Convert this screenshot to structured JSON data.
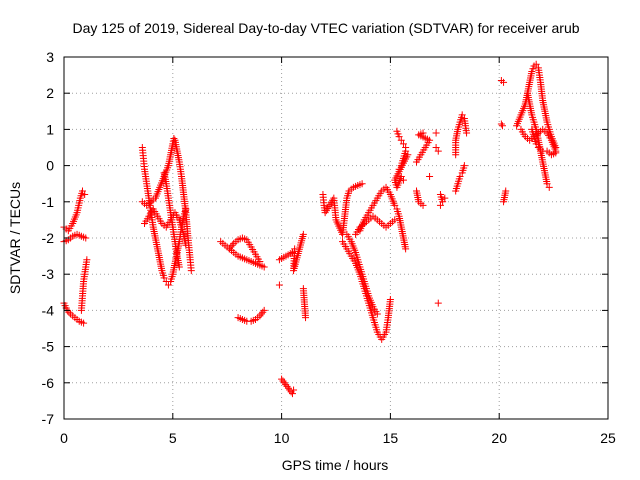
{
  "chart_data": {
    "type": "scatter",
    "title": "Day 125 of 2019, Sidereal Day-to-day VTEC variation (SDTVAR) for receiver arub",
    "xlabel": "GPS time / hours",
    "ylabel": "SDTVAR / TECUs",
    "xlim": [
      0,
      25
    ],
    "ylim": [
      -7,
      3
    ],
    "xticks": [
      0,
      5,
      10,
      15,
      20,
      25
    ],
    "yticks": [
      -7,
      -6,
      -5,
      -4,
      -3,
      -2,
      -1,
      0,
      1,
      2,
      3
    ],
    "grid": true,
    "grid_style": "dotted",
    "marker": "+",
    "marker_color": "#ff0000",
    "series": [
      {
        "name": "SDTVAR",
        "tracks": [
          [
            [
              0.0,
              -1.7
            ],
            [
              0.2,
              -1.8
            ],
            [
              0.4,
              -1.6
            ],
            [
              0.6,
              -1.3
            ],
            [
              0.75,
              -0.9
            ],
            [
              0.85,
              -0.7
            ],
            [
              0.95,
              -0.8
            ]
          ],
          [
            [
              0.0,
              -2.1
            ],
            [
              0.2,
              -2.05
            ],
            [
              0.4,
              -1.95
            ],
            [
              0.6,
              -1.9
            ],
            [
              0.8,
              -1.95
            ],
            [
              1.0,
              -2.0
            ]
          ],
          [
            [
              0.0,
              -3.8
            ],
            [
              0.15,
              -4.0
            ],
            [
              0.3,
              -4.1
            ],
            [
              0.5,
              -4.2
            ],
            [
              0.7,
              -4.3
            ],
            [
              0.9,
              -4.35
            ]
          ],
          [
            [
              0.8,
              -4.0
            ],
            [
              0.85,
              -3.6
            ],
            [
              0.9,
              -3.2
            ],
            [
              1.0,
              -2.8
            ],
            [
              1.05,
              -2.6
            ]
          ],
          [
            [
              3.6,
              0.5
            ],
            [
              3.65,
              0.2
            ],
            [
              3.7,
              -0.1
            ],
            [
              3.8,
              -0.5
            ],
            [
              3.9,
              -0.9
            ],
            [
              4.0,
              -1.3
            ],
            [
              4.1,
              -1.7
            ],
            [
              4.2,
              -2.0
            ],
            [
              4.3,
              -2.3
            ],
            [
              4.4,
              -2.6
            ],
            [
              4.5,
              -2.9
            ],
            [
              4.6,
              -3.1
            ],
            [
              4.7,
              -3.2
            ],
            [
              4.8,
              -3.3
            ],
            [
              4.9,
              -3.2
            ],
            [
              5.0,
              -3.0
            ],
            [
              5.1,
              -2.7
            ],
            [
              5.2,
              -2.4
            ],
            [
              5.3,
              -2.1
            ],
            [
              5.4,
              -1.7
            ],
            [
              5.5,
              -1.4
            ],
            [
              5.6,
              -1.2
            ]
          ],
          [
            [
              3.6,
              -1.0
            ],
            [
              3.8,
              -1.1
            ],
            [
              4.0,
              -1.0
            ],
            [
              4.2,
              -0.9
            ],
            [
              4.4,
              -0.6
            ],
            [
              4.6,
              -0.3
            ],
            [
              4.8,
              0.0
            ],
            [
              4.9,
              0.3
            ],
            [
              5.0,
              0.6
            ],
            [
              5.05,
              0.75
            ],
            [
              5.1,
              0.7
            ],
            [
              5.2,
              0.4
            ],
            [
              5.3,
              0.1
            ],
            [
              5.4,
              -0.3
            ],
            [
              5.5,
              -0.8
            ],
            [
              5.6,
              -1.3
            ],
            [
              5.7,
              -2.0
            ],
            [
              5.8,
              -2.6
            ],
            [
              5.85,
              -2.9
            ]
          ],
          [
            [
              3.7,
              -1.6
            ],
            [
              3.9,
              -1.4
            ],
            [
              4.1,
              -1.2
            ],
            [
              4.3,
              -1.4
            ],
            [
              4.5,
              -1.6
            ],
            [
              4.7,
              -1.7
            ],
            [
              4.9,
              -1.5
            ],
            [
              5.1,
              -1.3
            ],
            [
              5.3,
              -1.5
            ],
            [
              5.5,
              -1.9
            ],
            [
              5.6,
              -2.2
            ]
          ],
          [
            [
              4.6,
              -0.2
            ],
            [
              4.7,
              -0.5
            ],
            [
              4.8,
              -0.9
            ],
            [
              4.9,
              -1.3
            ],
            [
              5.0,
              -1.7
            ],
            [
              5.1,
              -2.1
            ],
            [
              5.2,
              -2.5
            ],
            [
              5.3,
              -2.8
            ]
          ],
          [
            [
              7.2,
              -2.1
            ],
            [
              7.4,
              -2.2
            ],
            [
              7.6,
              -2.3
            ],
            [
              7.8,
              -2.4
            ],
            [
              8.0,
              -2.5
            ],
            [
              8.2,
              -2.55
            ],
            [
              8.4,
              -2.6
            ],
            [
              8.6,
              -2.65
            ],
            [
              8.8,
              -2.7
            ],
            [
              9.0,
              -2.75
            ],
            [
              9.2,
              -2.8
            ]
          ],
          [
            [
              7.6,
              -2.3
            ],
            [
              7.8,
              -2.15
            ],
            [
              8.0,
              -2.05
            ],
            [
              8.2,
              -2.0
            ],
            [
              8.4,
              -2.05
            ],
            [
              8.6,
              -2.25
            ],
            [
              8.8,
              -2.45
            ],
            [
              9.0,
              -2.65
            ]
          ],
          [
            [
              8.0,
              -4.2
            ],
            [
              8.2,
              -4.25
            ],
            [
              8.4,
              -4.3
            ],
            [
              8.6,
              -4.3
            ],
            [
              8.8,
              -4.25
            ],
            [
              9.0,
              -4.15
            ],
            [
              9.2,
              -4.0
            ]
          ],
          [
            [
              9.9,
              -2.6
            ],
            [
              10.5,
              -2.4
            ],
            [
              10.6,
              -2.3
            ],
            [
              10.55,
              -2.9
            ],
            [
              11.0,
              -1.9
            ],
            [
              11.0,
              -3.4
            ],
            [
              11.1,
              -4.2
            ],
            [
              9.9,
              -3.3
            ],
            [
              10.0,
              -5.9
            ],
            [
              10.5,
              -6.3
            ],
            [
              10.55,
              -6.2
            ]
          ],
          [
            [
              11.9,
              -0.8
            ],
            [
              11.95,
              -1.1
            ],
            [
              12.0,
              -1.3
            ],
            [
              12.4,
              -0.9
            ],
            [
              12.5,
              -1.5
            ],
            [
              12.8,
              -1.9
            ],
            [
              13.0,
              -0.9
            ],
            [
              13.1,
              -0.7
            ],
            [
              13.3,
              -0.6
            ],
            [
              13.5,
              -0.55
            ],
            [
              13.7,
              -0.5
            ]
          ],
          [
            [
              12.8,
              -2.1
            ],
            [
              13.0,
              -2.3
            ],
            [
              13.2,
              -2.5
            ],
            [
              13.4,
              -2.7
            ],
            [
              13.6,
              -3.0
            ],
            [
              13.8,
              -3.4
            ],
            [
              14.0,
              -3.8
            ],
            [
              14.2,
              -4.2
            ],
            [
              14.4,
              -4.6
            ],
            [
              14.6,
              -4.8
            ],
            [
              14.8,
              -4.6
            ],
            [
              14.9,
              -4.2
            ],
            [
              15.0,
              -3.7
            ]
          ],
          [
            [
              13.0,
              -1.9
            ],
            [
              13.2,
              -2.1
            ],
            [
              13.4,
              -2.4
            ],
            [
              13.6,
              -2.8
            ],
            [
              13.8,
              -3.2
            ],
            [
              14.0,
              -3.6
            ],
            [
              14.2,
              -3.9
            ],
            [
              14.4,
              -4.1
            ]
          ],
          [
            [
              13.6,
              -1.8
            ],
            [
              13.8,
              -1.5
            ],
            [
              14.0,
              -1.3
            ],
            [
              14.2,
              -1.1
            ],
            [
              14.4,
              -0.9
            ],
            [
              14.6,
              -0.7
            ],
            [
              14.8,
              -0.6
            ],
            [
              15.0,
              -0.8
            ],
            [
              15.2,
              -1.1
            ]
          ],
          [
            [
              13.4,
              -1.9
            ],
            [
              13.6,
              -1.7
            ],
            [
              13.8,
              -1.6
            ],
            [
              14.0,
              -1.5
            ],
            [
              14.2,
              -1.4
            ],
            [
              14.4,
              -1.5
            ],
            [
              14.6,
              -1.6
            ],
            [
              14.8,
              -1.7
            ],
            [
              15.0,
              -1.6
            ],
            [
              15.2,
              -1.5
            ]
          ],
          [
            [
              15.3,
              0.95
            ],
            [
              15.4,
              0.8
            ],
            [
              15.5,
              0.7
            ],
            [
              15.6,
              0.6
            ],
            [
              15.7,
              0.5
            ],
            [
              15.3,
              -1.2
            ],
            [
              15.4,
              -1.4
            ],
            [
              15.5,
              -1.7
            ],
            [
              15.6,
              -2.0
            ],
            [
              15.7,
              -2.3
            ],
            [
              15.4,
              -0.1
            ],
            [
              15.5,
              0.0
            ],
            [
              15.6,
              0.2
            ],
            [
              15.7,
              0.4
            ],
            [
              15.8,
              0.3
            ],
            [
              15.2,
              -0.4
            ],
            [
              15.3,
              -0.6
            ],
            [
              15.5,
              -0.3
            ],
            [
              15.6,
              -0.4
            ]
          ],
          [
            [
              16.2,
              0.1
            ],
            [
              16.4,
              0.3
            ],
            [
              16.6,
              0.5
            ],
            [
              16.8,
              0.7
            ],
            [
              16.3,
              0.85
            ],
            [
              16.5,
              0.9
            ],
            [
              16.2,
              -0.7
            ],
            [
              16.3,
              -1.0
            ],
            [
              16.5,
              -1.1
            ],
            [
              17.1,
              0.5
            ],
            [
              17.2,
              0.4
            ],
            [
              17.3,
              -0.8
            ],
            [
              17.4,
              -1.0
            ],
            [
              17.5,
              -0.9
            ],
            [
              17.2,
              -3.8
            ],
            [
              16.8,
              -0.3
            ],
            [
              17.1,
              0.9
            ],
            [
              17.3,
              -1.1
            ]
          ],
          [
            [
              18.0,
              0.3
            ],
            [
              18.0,
              0.7
            ],
            [
              18.1,
              1.0
            ],
            [
              18.2,
              1.2
            ],
            [
              18.3,
              1.4
            ],
            [
              18.4,
              1.3
            ],
            [
              18.5,
              0.9
            ],
            [
              18.0,
              -0.7
            ],
            [
              18.1,
              -0.5
            ],
            [
              18.2,
              -0.3
            ],
            [
              18.3,
              -0.2
            ],
            [
              18.4,
              0.0
            ]
          ],
          [
            [
              20.1,
              2.35
            ],
            [
              20.2,
              2.3
            ],
            [
              20.1,
              1.15
            ],
            [
              20.15,
              1.1
            ],
            [
              20.3,
              -0.7
            ],
            [
              20.2,
              -1.0
            ]
          ],
          [
            [
              20.8,
              1.1
            ],
            [
              21.0,
              1.4
            ],
            [
              21.2,
              1.7
            ],
            [
              21.3,
              2.0
            ],
            [
              21.4,
              2.3
            ],
            [
              21.5,
              2.6
            ],
            [
              21.6,
              2.75
            ],
            [
              21.7,
              2.8
            ],
            [
              21.8,
              2.7
            ],
            [
              21.9,
              2.3
            ],
            [
              22.0,
              1.8
            ],
            [
              22.2,
              1.2
            ],
            [
              22.4,
              0.8
            ],
            [
              22.6,
              0.5
            ]
          ],
          [
            [
              21.0,
              1.0
            ],
            [
              21.2,
              0.8
            ],
            [
              21.4,
              0.7
            ],
            [
              21.6,
              0.8
            ],
            [
              21.8,
              0.9
            ],
            [
              22.0,
              1.0
            ],
            [
              22.2,
              0.9
            ],
            [
              22.4,
              0.7
            ],
            [
              22.6,
              0.4
            ]
          ],
          [
            [
              21.3,
              2.0
            ],
            [
              21.4,
              1.7
            ],
            [
              21.5,
              1.4
            ],
            [
              21.6,
              1.2
            ],
            [
              21.7,
              1.0
            ],
            [
              21.8,
              0.7
            ],
            [
              21.9,
              0.4
            ],
            [
              22.0,
              0.1
            ],
            [
              22.1,
              -0.2
            ],
            [
              22.2,
              -0.5
            ],
            [
              22.3,
              -0.6
            ]
          ],
          [
            [
              21.5,
              1.0
            ],
            [
              21.6,
              0.8
            ],
            [
              21.7,
              0.6
            ],
            [
              21.8,
              0.5
            ],
            [
              22.0,
              0.4
            ],
            [
              22.2,
              0.4
            ],
            [
              22.4,
              0.3
            ],
            [
              22.6,
              0.35
            ]
          ]
        ]
      }
    ]
  }
}
